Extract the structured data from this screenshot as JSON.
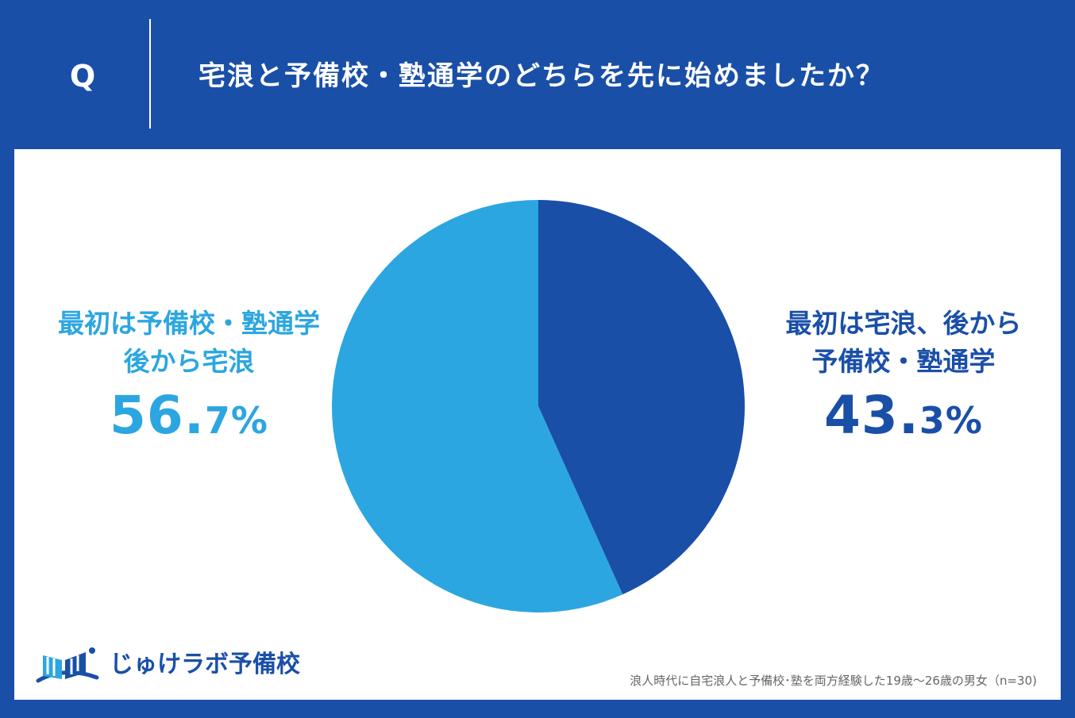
{
  "header": {
    "q_label": "Q",
    "question": "宅浪と予備校・塾通学のどちらを先に始めましたか？"
  },
  "colors": {
    "header_bg": "#1a4fa8",
    "light_blue": "#2ca6e0",
    "dark_blue": "#1a4fa8"
  },
  "chart_data": {
    "type": "pie",
    "title": "宅浪と予備校・塾通学のどちらを先に始めましたか？",
    "slices": [
      {
        "label_line1": "最初は宅浪、後から",
        "label_line2": "予備校・塾通学",
        "value": 43.3,
        "value_int": "43.",
        "value_dec": "3%",
        "color": "#1a4fa8"
      },
      {
        "label_line1": "最初は予備校・塾通学",
        "label_line2": "後から宅浪",
        "value": 56.7,
        "value_int": "56.",
        "value_dec": "7%",
        "color": "#2ca6e0"
      }
    ],
    "sample_note": "浪人時代に自宅浪人と予備校･塾を両方経験した19歳～26歳の男女（n=30)"
  },
  "logo": {
    "text": "じゅけラボ予備校",
    "icon": "book-icon"
  }
}
